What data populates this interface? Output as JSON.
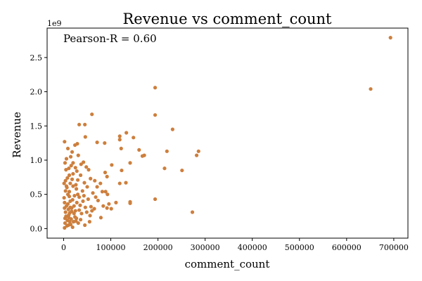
{
  "chart_data": {
    "type": "scatter",
    "title": "Revenue vs comment_count",
    "xlabel": "comment_count",
    "ylabel": "Revenue",
    "annotation": "Pearson-R = 0.60",
    "y_offset_text": "1e9",
    "xlim": [
      -35000,
      730000
    ],
    "ylim": [
      -0.14,
      2.93
    ],
    "y_units_scale": 1000000000,
    "x_ticks": [
      0,
      100000,
      200000,
      300000,
      400000,
      500000,
      600000,
      700000
    ],
    "x_tick_labels": [
      "0",
      "100000",
      "200000",
      "300000",
      "400000",
      "500000",
      "600000",
      "700000"
    ],
    "y_ticks": [
      0.0,
      0.5,
      1.0,
      1.5,
      2.0,
      2.5
    ],
    "y_tick_labels": [
      "0.0",
      "0.5",
      "1.0",
      "1.5",
      "2.0",
      "2.5"
    ],
    "grid": false,
    "marker_color": "#cd7f3d",
    "series": [
      {
        "points": [
          [
            693000,
            2.79
          ],
          [
            651000,
            2.04
          ],
          [
            194000,
            2.06
          ],
          [
            194000,
            1.66
          ],
          [
            231000,
            1.45
          ],
          [
            60000,
            1.67
          ],
          [
            33000,
            1.52
          ],
          [
            45000,
            1.52
          ],
          [
            46000,
            1.34
          ],
          [
            133000,
            1.4
          ],
          [
            148000,
            1.33
          ],
          [
            119000,
            1.35
          ],
          [
            119000,
            1.3
          ],
          [
            71000,
            1.26
          ],
          [
            87000,
            1.25
          ],
          [
            122000,
            1.17
          ],
          [
            160000,
            1.15
          ],
          [
            219000,
            1.13
          ],
          [
            286000,
            1.13
          ],
          [
            282000,
            1.07
          ],
          [
            167000,
            1.06
          ],
          [
            171000,
            1.07
          ],
          [
            141000,
            0.96
          ],
          [
            102000,
            0.93
          ],
          [
            123000,
            0.85
          ],
          [
            214000,
            0.88
          ],
          [
            251000,
            0.85
          ],
          [
            88000,
            0.82
          ],
          [
            92000,
            0.76
          ],
          [
            119000,
            0.66
          ],
          [
            132000,
            0.67
          ],
          [
            89000,
            0.54
          ],
          [
            141000,
            0.39
          ],
          [
            141000,
            0.37
          ],
          [
            194000,
            0.43
          ],
          [
            273000,
            0.24
          ],
          [
            92000,
            0.3
          ],
          [
            101000,
            0.29
          ],
          [
            60000,
            0.26
          ],
          [
            2000,
            1.27
          ],
          [
            9000,
            1.17
          ],
          [
            18000,
            1.12
          ],
          [
            24000,
            1.22
          ],
          [
            29000,
            1.24
          ],
          [
            31000,
            1.07
          ],
          [
            15000,
            1.05
          ],
          [
            6000,
            1.02
          ],
          [
            42000,
            0.97
          ],
          [
            37000,
            0.94
          ],
          [
            48000,
            0.9
          ],
          [
            53000,
            0.86
          ],
          [
            25000,
            0.89
          ],
          [
            11000,
            0.88
          ],
          [
            3000,
            0.96
          ],
          [
            20000,
            0.8
          ],
          [
            36000,
            0.78
          ],
          [
            57000,
            0.73
          ],
          [
            66000,
            0.7
          ],
          [
            78000,
            0.66
          ],
          [
            44000,
            0.67
          ],
          [
            30000,
            0.71
          ],
          [
            8000,
            0.74
          ],
          [
            14000,
            0.66
          ],
          [
            50000,
            0.61
          ],
          [
            71000,
            0.61
          ],
          [
            82000,
            0.54
          ],
          [
            93000,
            0.5
          ],
          [
            62000,
            0.52
          ],
          [
            40000,
            0.55
          ],
          [
            27000,
            0.58
          ],
          [
            4000,
            0.55
          ],
          [
            12000,
            0.47
          ],
          [
            33000,
            0.46
          ],
          [
            52000,
            0.43
          ],
          [
            73000,
            0.41
          ],
          [
            96000,
            0.36
          ],
          [
            111000,
            0.38
          ],
          [
            84000,
            0.33
          ],
          [
            65000,
            0.29
          ],
          [
            46000,
            0.31
          ],
          [
            22000,
            0.33
          ],
          [
            9000,
            0.36
          ],
          [
            2000,
            0.3
          ],
          [
            17000,
            0.25
          ],
          [
            38000,
            0.22
          ],
          [
            56000,
            0.19
          ],
          [
            79000,
            0.16
          ],
          [
            27000,
            0.15
          ],
          [
            5000,
            0.18
          ],
          [
            13000,
            0.1
          ],
          [
            31000,
            0.08
          ],
          [
            45000,
            0.05
          ],
          [
            7000,
            0.04
          ],
          [
            19000,
            0.02
          ],
          [
            2000,
            0.01
          ],
          [
            10000,
            0.28
          ],
          [
            14000,
            0.4
          ],
          [
            20000,
            0.62
          ],
          [
            23000,
            0.48
          ],
          [
            6000,
            0.62
          ],
          [
            11000,
            0.2
          ],
          [
            16000,
            0.14
          ],
          [
            25000,
            0.26
          ],
          [
            28000,
            0.38
          ],
          [
            35000,
            0.34
          ],
          [
            3000,
            0.08
          ],
          [
            8000,
            0.12
          ],
          [
            15000,
            0.06
          ],
          [
            21000,
            0.1
          ],
          [
            1000,
            0.45
          ],
          [
            12000,
            0.54
          ],
          [
            18000,
            0.72
          ],
          [
            26000,
            0.64
          ],
          [
            41000,
            0.4
          ],
          [
            58000,
            0.32
          ],
          [
            68000,
            0.46
          ],
          [
            4000,
            0.24
          ],
          [
            9000,
            0.5
          ],
          [
            14000,
            0.31
          ],
          [
            24000,
            0.17
          ],
          [
            33000,
            0.27
          ],
          [
            49000,
            0.24
          ],
          [
            5000,
            0.86
          ],
          [
            16000,
            0.92
          ],
          [
            28000,
            0.84
          ],
          [
            7000,
            0.6
          ],
          [
            19000,
            0.42
          ],
          [
            30000,
            0.5
          ],
          [
            43000,
            0.48
          ],
          [
            1000,
            0.66
          ],
          [
            2000,
            0.38
          ],
          [
            3000,
            0.15
          ],
          [
            6000,
            0.33
          ],
          [
            11000,
            0.16
          ],
          [
            13000,
            0.23
          ],
          [
            17000,
            0.3
          ],
          [
            22000,
            0.22
          ],
          [
            26000,
            0.11
          ],
          [
            36000,
            0.13
          ],
          [
            55000,
            0.1
          ],
          [
            10000,
            0.05
          ],
          [
            4000,
            0.7
          ],
          [
            12000,
            0.78
          ],
          [
            20000,
            0.96
          ]
        ]
      }
    ]
  }
}
